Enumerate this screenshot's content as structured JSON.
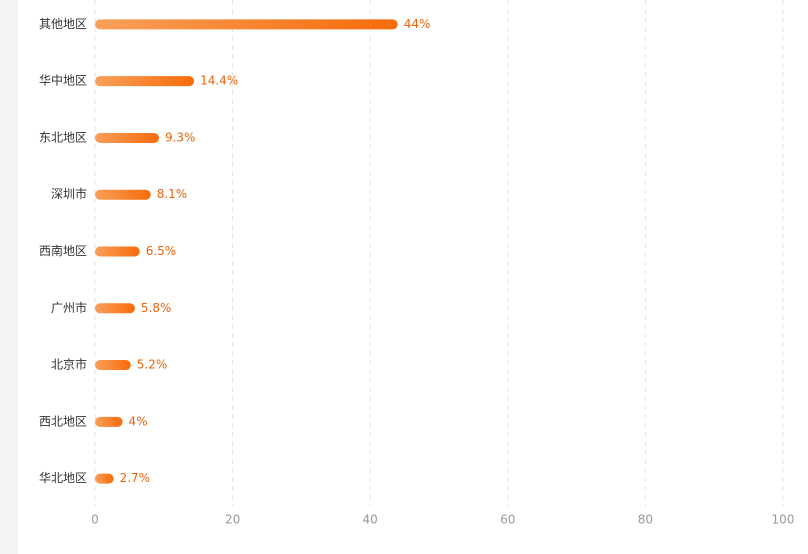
{
  "chart_data": {
    "type": "hbar",
    "categories": [
      "其他地区",
      "华中地区",
      "东北地区",
      "深圳市",
      "西南地区",
      "广州市",
      "北京市",
      "西北地区",
      "华北地区"
    ],
    "values": [
      44,
      14.4,
      9.3,
      8.1,
      6.5,
      5.8,
      5.2,
      4,
      2.7
    ],
    "value_labels": [
      "44%",
      "14.4%",
      "9.3%",
      "8.1%",
      "6.5%",
      "5.8%",
      "5.2%",
      "4%",
      "2.7%"
    ],
    "colors": [
      "#f9a05a",
      "#f76b0a"
    ],
    "xlim": [
      0,
      100
    ],
    "xticks": [
      0,
      20,
      40,
      60,
      80,
      100
    ],
    "grid": true
  }
}
